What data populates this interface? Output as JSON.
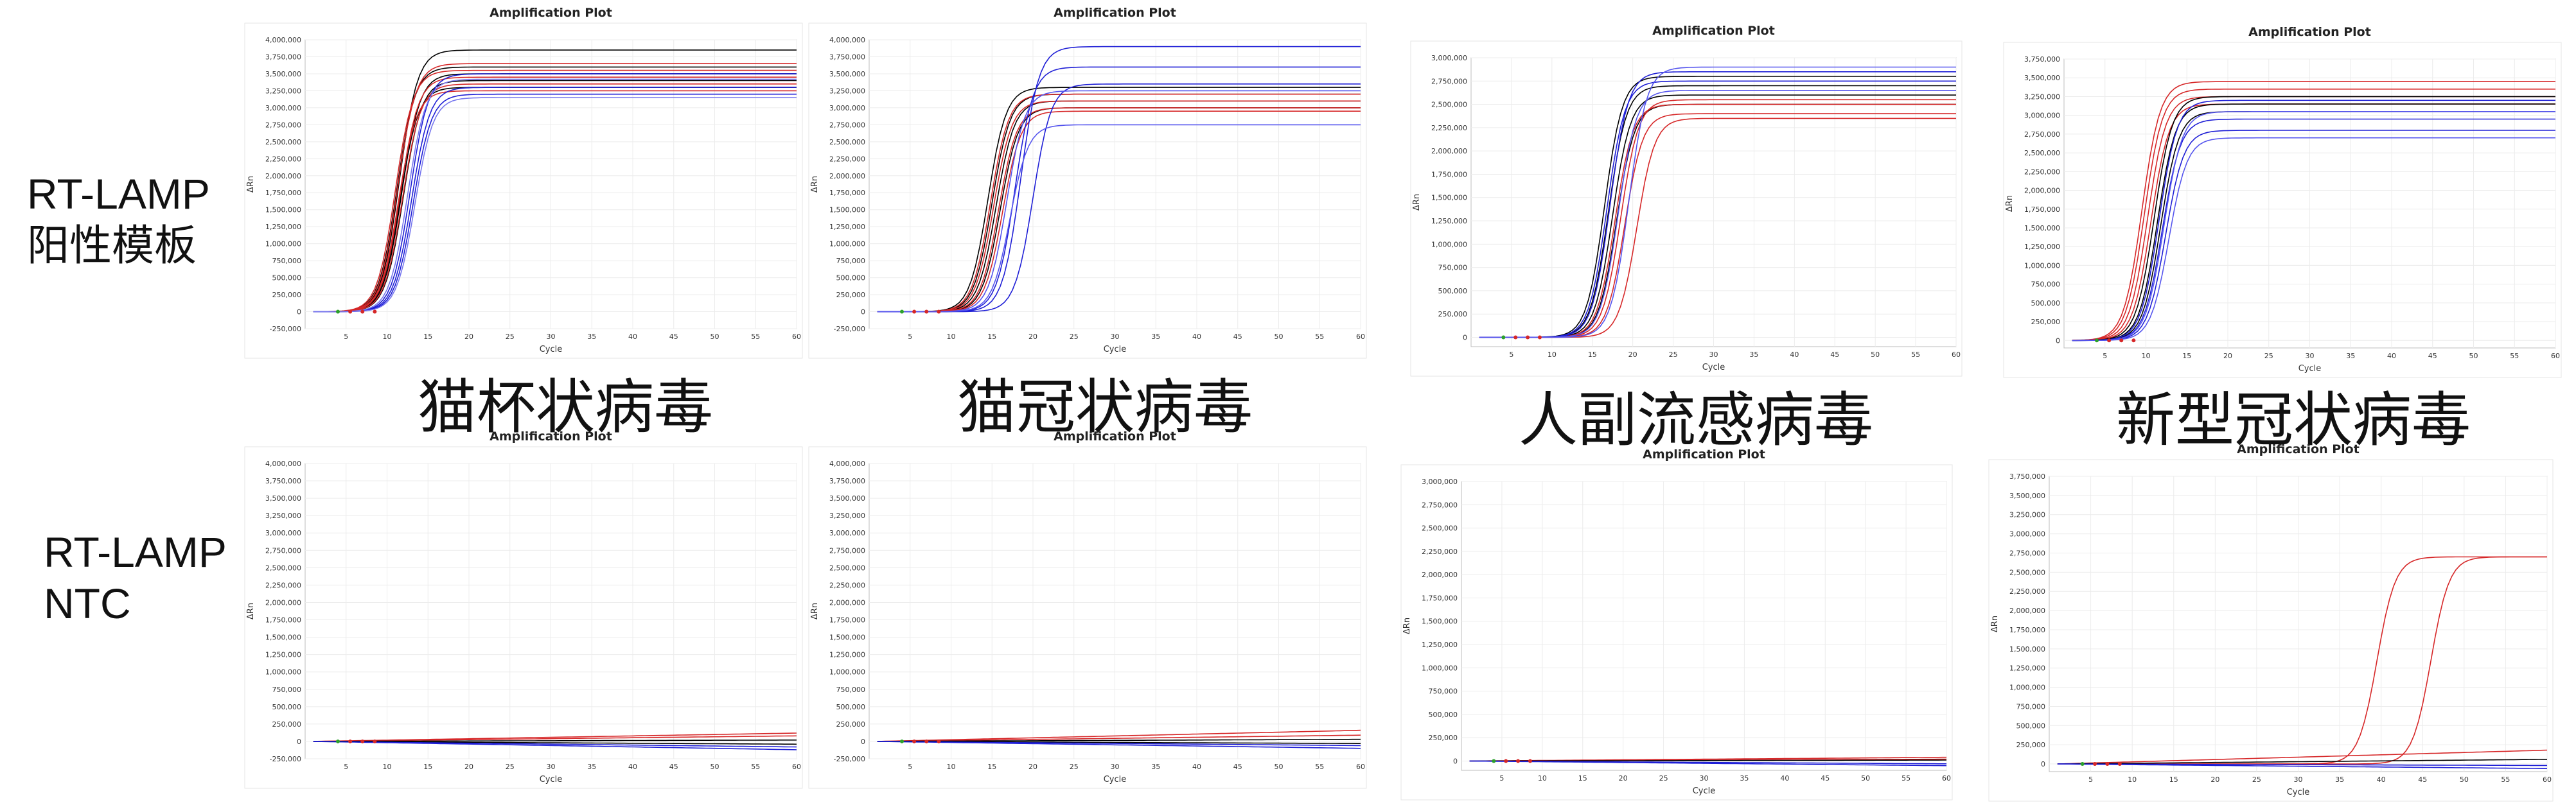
{
  "row_labels": {
    "positive": [
      "RT-LAMP",
      "阳性模板"
    ],
    "ntc": [
      "RT-LAMP",
      "NTC"
    ]
  },
  "captions": [
    "猫杯状病毒",
    "猫冠状病毒",
    "人副流感病毒",
    "新型冠状病毒"
  ],
  "chart_data": [
    {
      "id": "p1",
      "type": "line",
      "title": "Amplification Plot",
      "xlabel": "Cycle",
      "ylabel": "ΔRn",
      "xlim": [
        0,
        60
      ],
      "ylim": [
        -250000,
        4000000
      ],
      "yticks": [
        -250000,
        0,
        250000,
        500000,
        750000,
        1000000,
        1250000,
        1500000,
        1750000,
        2000000,
        2250000,
        2500000,
        2750000,
        3000000,
        3250000,
        3500000,
        3750000,
        4000000
      ],
      "xticks": [
        5,
        10,
        15,
        20,
        25,
        30,
        35,
        40,
        45,
        50,
        55,
        60
      ],
      "curve_model": "sigmoid",
      "series": [
        {
          "color": "#000000",
          "plateau": 3850000,
          "midpoint": 11.5
        },
        {
          "color": "#000000",
          "plateau": 3600000,
          "midpoint": 11.2
        },
        {
          "color": "#000000",
          "plateau": 3500000,
          "midpoint": 11.8
        },
        {
          "color": "#000000",
          "plateau": 3400000,
          "midpoint": 12.0
        },
        {
          "color": "#000000",
          "plateau": 3300000,
          "midpoint": 11.6
        },
        {
          "color": "#d62728",
          "plateau": 3650000,
          "midpoint": 11.3
        },
        {
          "color": "#d62728",
          "plateau": 3550000,
          "midpoint": 11.0
        },
        {
          "color": "#d62728",
          "plateau": 3450000,
          "midpoint": 11.6
        },
        {
          "color": "#d62728",
          "plateau": 3350000,
          "midpoint": 11.9
        },
        {
          "color": "#d62728",
          "plateau": 3250000,
          "midpoint": 11.4
        },
        {
          "color": "#1f1fd6",
          "plateau": 3500000,
          "midpoint": 12.8
        },
        {
          "color": "#1f1fd6",
          "plateau": 3300000,
          "midpoint": 13.0
        },
        {
          "color": "#1f1fd6",
          "plateau": 3200000,
          "midpoint": 13.2
        },
        {
          "color": "#7777ee",
          "plateau": 3420000,
          "midpoint": 12.5
        },
        {
          "color": "#7777ee",
          "plateau": 3150000,
          "midpoint": 13.4
        }
      ]
    },
    {
      "id": "p2",
      "type": "line",
      "title": "Amplification Plot",
      "xlabel": "Cycle",
      "ylabel": "ΔRn",
      "xlim": [
        0,
        60
      ],
      "ylim": [
        -250000,
        4000000
      ],
      "yticks": [
        -250000,
        0,
        250000,
        500000,
        750000,
        1000000,
        1250000,
        1500000,
        1750000,
        2000000,
        2250000,
        2500000,
        2750000,
        3000000,
        3250000,
        3500000,
        3750000,
        4000000
      ],
      "xticks": [
        5,
        10,
        15,
        20,
        25,
        30,
        35,
        40,
        45,
        50,
        55,
        60
      ],
      "curve_model": "sigmoid",
      "series": [
        {
          "color": "#000000",
          "plateau": 3300000,
          "midpoint": 14.5
        },
        {
          "color": "#000000",
          "plateau": 3200000,
          "midpoint": 15.0
        },
        {
          "color": "#000000",
          "plateau": 3100000,
          "midpoint": 15.5
        },
        {
          "color": "#000000",
          "plateau": 3000000,
          "midpoint": 16.0
        },
        {
          "color": "#d62728",
          "plateau": 3200000,
          "midpoint": 14.8
        },
        {
          "color": "#d62728",
          "plateau": 3100000,
          "midpoint": 15.2
        },
        {
          "color": "#d62728",
          "plateau": 3000000,
          "midpoint": 15.8
        },
        {
          "color": "#d62728",
          "plateau": 2950000,
          "midpoint": 16.3
        },
        {
          "color": "#1f1fd6",
          "plateau": 3900000,
          "midpoint": 18.5
        },
        {
          "color": "#1f1fd6",
          "plateau": 3600000,
          "midpoint": 17.8
        },
        {
          "color": "#1f1fd6",
          "plateau": 3350000,
          "midpoint": 20.0
        },
        {
          "color": "#5555ee",
          "plateau": 3250000,
          "midpoint": 16.8
        },
        {
          "color": "#5555ee",
          "plateau": 2750000,
          "midpoint": 17.2
        }
      ]
    },
    {
      "id": "p3",
      "type": "line",
      "title": "Amplification Plot",
      "xlabel": "Cycle",
      "ylabel": "ΔRn",
      "xlim": [
        0,
        60
      ],
      "ylim": [
        -100000,
        3000000
      ],
      "yticks": [
        0,
        250000,
        500000,
        750000,
        1000000,
        1250000,
        1500000,
        1750000,
        2000000,
        2250000,
        2500000,
        2750000,
        3000000
      ],
      "xticks": [
        5,
        10,
        15,
        20,
        25,
        30,
        35,
        40,
        45,
        50,
        55,
        60
      ],
      "curve_model": "sigmoid",
      "series": [
        {
          "color": "#000000",
          "plateau": 2800000,
          "midpoint": 16.5
        },
        {
          "color": "#000000",
          "plateau": 2700000,
          "midpoint": 17.0
        },
        {
          "color": "#000000",
          "plateau": 2600000,
          "midpoint": 17.5
        },
        {
          "color": "#000000",
          "plateau": 2500000,
          "midpoint": 18.0
        },
        {
          "color": "#d62728",
          "plateau": 2500000,
          "midpoint": 17.8
        },
        {
          "color": "#d62728",
          "plateau": 2400000,
          "midpoint": 19.0
        },
        {
          "color": "#d62728",
          "plateau": 2350000,
          "midpoint": 20.5
        },
        {
          "color": "#d62728",
          "plateau": 2550000,
          "midpoint": 18.5
        },
        {
          "color": "#1f1fd6",
          "plateau": 2850000,
          "midpoint": 17.2
        },
        {
          "color": "#1f1fd6",
          "plateau": 2750000,
          "midpoint": 16.8
        },
        {
          "color": "#5555ee",
          "plateau": 2650000,
          "midpoint": 18.2
        },
        {
          "color": "#5555ee",
          "plateau": 2900000,
          "midpoint": 19.5
        }
      ]
    },
    {
      "id": "p4",
      "type": "line",
      "title": "Amplification Plot",
      "xlabel": "Cycle",
      "ylabel": "ΔRn",
      "xlim": [
        0,
        60
      ],
      "ylim": [
        -100000,
        3750000
      ],
      "yticks": [
        0,
        250000,
        500000,
        750000,
        1000000,
        1250000,
        1500000,
        1750000,
        2000000,
        2250000,
        2500000,
        2750000,
        3000000,
        3250000,
        3500000,
        3750000
      ],
      "xticks": [
        5,
        10,
        15,
        20,
        25,
        30,
        35,
        40,
        45,
        50,
        55,
        60
      ],
      "curve_model": "sigmoid",
      "series": [
        {
          "color": "#d62728",
          "plateau": 3450000,
          "midpoint": 9.5
        },
        {
          "color": "#d62728",
          "plateau": 3350000,
          "midpoint": 9.8
        },
        {
          "color": "#d62728",
          "plateau": 3250000,
          "midpoint": 10.2
        },
        {
          "color": "#d62728",
          "plateau": 3150000,
          "midpoint": 10.6
        },
        {
          "color": "#000000",
          "plateau": 3250000,
          "midpoint": 11.0
        },
        {
          "color": "#000000",
          "plateau": 3150000,
          "midpoint": 11.4
        },
        {
          "color": "#000000",
          "plateau": 3050000,
          "midpoint": 11.8
        },
        {
          "color": "#1f1fd6",
          "plateau": 3200000,
          "midpoint": 11.6
        },
        {
          "color": "#1f1fd6",
          "plateau": 2950000,
          "midpoint": 12.0
        },
        {
          "color": "#1f1fd6",
          "plateau": 2800000,
          "midpoint": 12.4
        },
        {
          "color": "#5555ee",
          "plateau": 2700000,
          "midpoint": 12.8
        },
        {
          "color": "#5555ee",
          "plateau": 3050000,
          "midpoint": 12.2
        }
      ]
    },
    {
      "id": "n1",
      "type": "line",
      "title": "Amplification Plot",
      "xlabel": "Cycle",
      "ylabel": "ΔRn",
      "xlim": [
        0,
        60
      ],
      "ylim": [
        -250000,
        4000000
      ],
      "yticks": [
        -250000,
        0,
        250000,
        500000,
        750000,
        1000000,
        1250000,
        1500000,
        1750000,
        2000000,
        2250000,
        2500000,
        2750000,
        3000000,
        3250000,
        3500000,
        3750000,
        4000000
      ],
      "xticks": [
        5,
        10,
        15,
        20,
        25,
        30,
        35,
        40,
        45,
        50,
        55,
        60
      ],
      "curve_model": "linear",
      "series": [
        {
          "color": "#d62728",
          "end": 120000
        },
        {
          "color": "#d62728",
          "end": 80000
        },
        {
          "color": "#000000",
          "end": 20000
        },
        {
          "color": "#000000",
          "end": -40000
        },
        {
          "color": "#1f1fd6",
          "end": -80000
        },
        {
          "color": "#1f1fd6",
          "end": -120000
        }
      ]
    },
    {
      "id": "n2",
      "type": "line",
      "title": "Amplification Plot",
      "xlabel": "Cycle",
      "ylabel": "ΔRn",
      "xlim": [
        0,
        60
      ],
      "ylim": [
        -250000,
        4000000
      ],
      "yticks": [
        -250000,
        0,
        250000,
        500000,
        750000,
        1000000,
        1250000,
        1500000,
        1750000,
        2000000,
        2250000,
        2500000,
        2750000,
        3000000,
        3250000,
        3500000,
        3750000,
        4000000
      ],
      "xticks": [
        5,
        10,
        15,
        20,
        25,
        30,
        35,
        40,
        45,
        50,
        55,
        60
      ],
      "curve_model": "linear",
      "series": [
        {
          "color": "#d62728",
          "end": 160000
        },
        {
          "color": "#d62728",
          "end": 90000
        },
        {
          "color": "#000000",
          "end": 30000
        },
        {
          "color": "#000000",
          "end": -30000
        },
        {
          "color": "#1f1fd6",
          "end": -60000
        },
        {
          "color": "#1f1fd6",
          "end": -100000
        }
      ]
    },
    {
      "id": "n3",
      "type": "line",
      "title": "Amplification Plot",
      "xlabel": "Cycle",
      "ylabel": "ΔRn",
      "xlim": [
        0,
        60
      ],
      "ylim": [
        -100000,
        3000000
      ],
      "yticks": [
        0,
        250000,
        500000,
        750000,
        1000000,
        1250000,
        1500000,
        1750000,
        2000000,
        2250000,
        2500000,
        2750000,
        3000000
      ],
      "xticks": [
        5,
        10,
        15,
        20,
        25,
        30,
        35,
        40,
        45,
        50,
        55,
        60
      ],
      "curve_model": "linear",
      "series": [
        {
          "color": "#d62728",
          "end": 40000
        },
        {
          "color": "#d62728",
          "end": 20000
        },
        {
          "color": "#000000",
          "end": 10000
        },
        {
          "color": "#1f1fd6",
          "end": -30000
        },
        {
          "color": "#1f1fd6",
          "end": -50000
        }
      ]
    },
    {
      "id": "n4",
      "type": "line",
      "title": "Amplification Plot",
      "xlabel": "Cycle",
      "ylabel": "ΔRn",
      "xlim": [
        0,
        60
      ],
      "ylim": [
        -100000,
        3750000
      ],
      "yticks": [
        0,
        250000,
        500000,
        750000,
        1000000,
        1250000,
        1500000,
        1750000,
        2000000,
        2250000,
        2500000,
        2750000,
        3000000,
        3250000,
        3500000,
        3750000
      ],
      "xticks": [
        5,
        10,
        15,
        20,
        25,
        30,
        35,
        40,
        45,
        50,
        55,
        60
      ],
      "curve_model": "mixed",
      "series": [
        {
          "color": "#d62728",
          "model": "sigmoid",
          "plateau": 2700000,
          "midpoint": 39.5
        },
        {
          "color": "#d62728",
          "model": "sigmoid",
          "plateau": 2700000,
          "midpoint": 46.0
        },
        {
          "color": "#d62728",
          "model": "linear",
          "end": 180000
        },
        {
          "color": "#000000",
          "model": "linear",
          "end": 60000
        },
        {
          "color": "#1f1fd6",
          "model": "linear",
          "end": -20000
        },
        {
          "color": "#1f1fd6",
          "model": "linear",
          "end": -60000
        }
      ]
    }
  ]
}
